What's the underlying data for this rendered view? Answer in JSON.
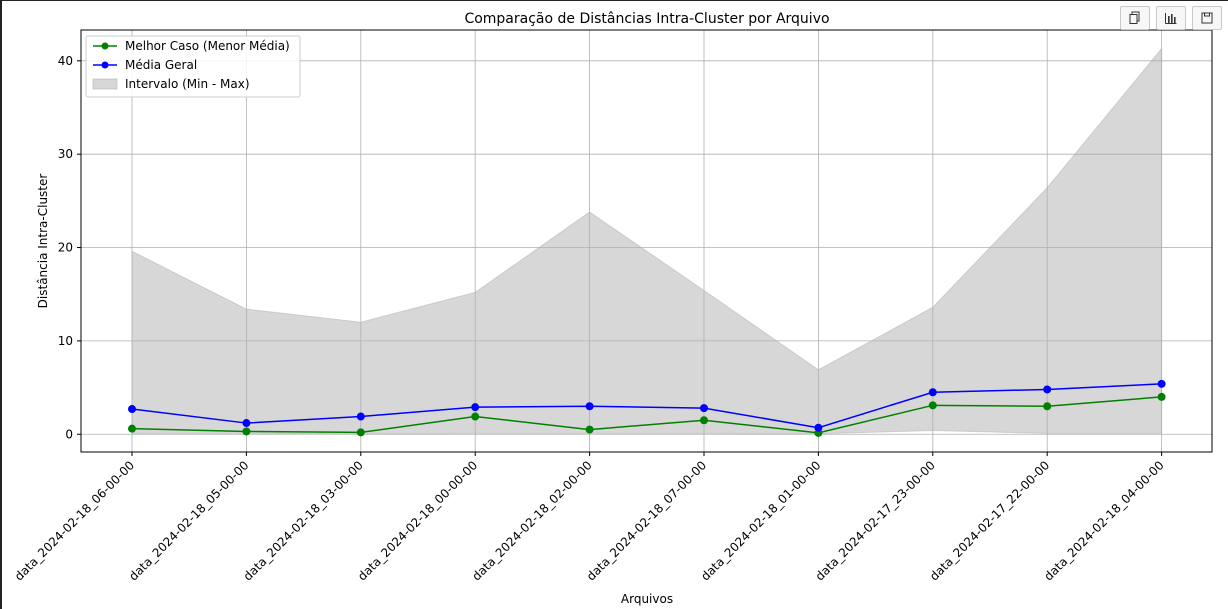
{
  "toolbar": {
    "icons": [
      "copy-icon",
      "bar-chart-icon",
      "save-icon"
    ]
  },
  "chart_data": {
    "type": "line",
    "title": "Comparação de Distâncias Intra-Cluster por Arquivo",
    "xlabel": "Arquivos",
    "ylabel": "Distância Intra-Cluster",
    "categories": [
      "data_2024-02-18_06-00-00",
      "data_2024-02-18_05-00-00",
      "data_2024-02-18_03-00-00",
      "data_2024-02-18_00-00-00",
      "data_2024-02-18_02-00-00",
      "data_2024-02-18_07-00-00",
      "data_2024-02-18_01-00-00",
      "data_2024-02-17_23-00-00",
      "data_2024-02-17_22-00-00",
      "data_2024-02-18_04-00-00"
    ],
    "series": [
      {
        "name": "Melhor Caso (Menor Média)",
        "color": "#008000",
        "values": [
          0.6,
          0.3,
          0.2,
          1.9,
          0.5,
          1.5,
          0.15,
          3.1,
          3.0,
          4.0
        ]
      },
      {
        "name": "Média Geral",
        "color": "#0000ff",
        "values": [
          2.7,
          1.2,
          1.9,
          2.9,
          3.0,
          2.8,
          0.7,
          4.5,
          4.8,
          5.4
        ]
      }
    ],
    "range": {
      "name": "Intervalo (Min - Max)",
      "color": "#b0b0b0",
      "min": [
        0.1,
        0.1,
        0.05,
        0.1,
        0.1,
        0.1,
        0.05,
        0.4,
        0.1,
        0.1
      ],
      "max": [
        19.6,
        13.4,
        12.0,
        15.2,
        23.8,
        15.4,
        6.9,
        13.6,
        26.4,
        41.3
      ]
    },
    "yticks": [
      0,
      10,
      20,
      30,
      40
    ],
    "ylim": [
      -1.9,
      43.3
    ],
    "grid": true,
    "legend": "top-left"
  }
}
